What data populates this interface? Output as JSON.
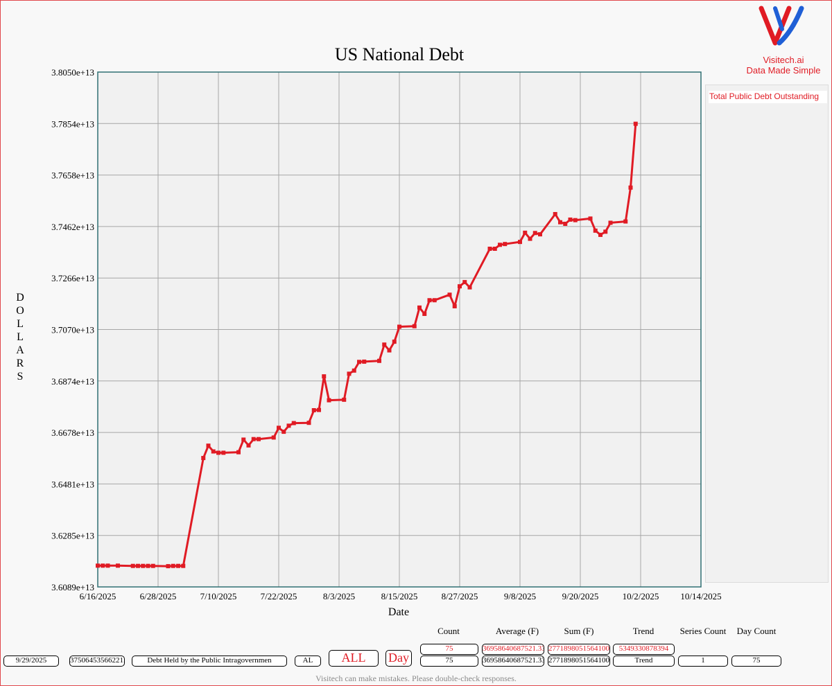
{
  "brand": {
    "name": "Visitech.ai",
    "tagline": "Data Made Simple",
    "colors": {
      "red": "#e01b24",
      "blue": "#1f5fd6"
    }
  },
  "chart_data": {
    "type": "line",
    "title": "US National Debt",
    "xlabel": "Date",
    "ylabel": "DOLLARS",
    "grid": true,
    "legend": "right",
    "ylim": [
      36089000000000,
      38050000000000
    ],
    "xlim": [
      "2025-06-16",
      "2025-10-14"
    ],
    "yticks": [
      "3.6089e+13",
      "3.6285e+13",
      "3.6481e+13",
      "3.6678e+13",
      "3.6874e+13",
      "3.7070e+13",
      "3.7266e+13",
      "3.7462e+13",
      "3.7658e+13",
      "3.7854e+13",
      "3.8050e+13"
    ],
    "xticks": [
      "6/16/2025",
      "6/28/2025",
      "7/10/2025",
      "7/22/2025",
      "8/3/2025",
      "8/15/2025",
      "8/27/2025",
      "9/8/2025",
      "9/20/2025",
      "10/2/2025",
      "10/14/2025"
    ],
    "series": [
      {
        "name": "Total Public Debt Outstanding",
        "color": "#e01b24",
        "points": [
          [
            "2025-06-16",
            36170000000000
          ],
          [
            "2025-06-17",
            36170000000000
          ],
          [
            "2025-06-18",
            36170000000000
          ],
          [
            "2025-06-20",
            36170000000000
          ],
          [
            "2025-06-23",
            36169000000000
          ],
          [
            "2025-06-24",
            36169000000000
          ],
          [
            "2025-06-25",
            36169000000000
          ],
          [
            "2025-06-26",
            36169000000000
          ],
          [
            "2025-06-27",
            36169000000000
          ],
          [
            "2025-06-30",
            36168000000000
          ],
          [
            "2025-07-01",
            36169000000000
          ],
          [
            "2025-07-02",
            36169000000000
          ],
          [
            "2025-07-03",
            36169000000000
          ],
          [
            "2025-07-07",
            36580000000000
          ],
          [
            "2025-07-08",
            36627000000000
          ],
          [
            "2025-07-09",
            36605000000000
          ],
          [
            "2025-07-10",
            36600000000000
          ],
          [
            "2025-07-11",
            36600000000000
          ],
          [
            "2025-07-14",
            36602000000000
          ],
          [
            "2025-07-15",
            36650000000000
          ],
          [
            "2025-07-16",
            36628000000000
          ],
          [
            "2025-07-17",
            36652000000000
          ],
          [
            "2025-07-18",
            36652000000000
          ],
          [
            "2025-07-21",
            36658000000000
          ],
          [
            "2025-07-22",
            36695000000000
          ],
          [
            "2025-07-23",
            36680000000000
          ],
          [
            "2025-07-24",
            36703000000000
          ],
          [
            "2025-07-25",
            36713000000000
          ],
          [
            "2025-07-28",
            36714000000000
          ],
          [
            "2025-07-29",
            36762000000000
          ],
          [
            "2025-07-30",
            36763000000000
          ],
          [
            "2025-07-31",
            36891000000000
          ],
          [
            "2025-08-01",
            36800000000000
          ],
          [
            "2025-08-04",
            36802000000000
          ],
          [
            "2025-08-05",
            36901000000000
          ],
          [
            "2025-08-06",
            36913000000000
          ],
          [
            "2025-08-07",
            36946000000000
          ],
          [
            "2025-08-08",
            36947000000000
          ],
          [
            "2025-08-11",
            36950000000000
          ],
          [
            "2025-08-12",
            37012000000000
          ],
          [
            "2025-08-13",
            36990000000000
          ],
          [
            "2025-08-14",
            37023000000000
          ],
          [
            "2025-08-15",
            37080000000000
          ],
          [
            "2025-08-18",
            37082000000000
          ],
          [
            "2025-08-19",
            37153000000000
          ],
          [
            "2025-08-20",
            37129000000000
          ],
          [
            "2025-08-21",
            37181000000000
          ],
          [
            "2025-08-22",
            37181000000000
          ],
          [
            "2025-08-25",
            37202000000000
          ],
          [
            "2025-08-26",
            37158000000000
          ],
          [
            "2025-08-27",
            37234000000000
          ],
          [
            "2025-08-28",
            37250000000000
          ],
          [
            "2025-08-29",
            37230000000000
          ],
          [
            "2025-09-02",
            37377000000000
          ],
          [
            "2025-09-03",
            37377000000000
          ],
          [
            "2025-09-04",
            37392000000000
          ],
          [
            "2025-09-05",
            37395000000000
          ],
          [
            "2025-09-08",
            37403000000000
          ],
          [
            "2025-09-09",
            37438000000000
          ],
          [
            "2025-09-10",
            37415000000000
          ],
          [
            "2025-09-11",
            37437000000000
          ],
          [
            "2025-09-12",
            37432000000000
          ],
          [
            "2025-09-15",
            37509000000000
          ],
          [
            "2025-09-16",
            37478000000000
          ],
          [
            "2025-09-17",
            37472000000000
          ],
          [
            "2025-09-18",
            37488000000000
          ],
          [
            "2025-09-19",
            37486000000000
          ],
          [
            "2025-09-22",
            37492000000000
          ],
          [
            "2025-09-23",
            37446000000000
          ],
          [
            "2025-09-24",
            37430000000000
          ],
          [
            "2025-09-25",
            37442000000000
          ],
          [
            "2025-09-26",
            37476000000000
          ],
          [
            "2025-09-29",
            37481000000000
          ],
          [
            "2025-09-30",
            37610000000000
          ],
          [
            "2025-10-01",
            37853000000000
          ]
        ]
      }
    ]
  },
  "stats": {
    "headers": {
      "count": "Count",
      "average": "Average (F)",
      "sum": "Sum (F)",
      "trend": "Trend",
      "series_count": "Series Count",
      "day_count": "Day Count"
    },
    "row1": {
      "count": "75",
      "average": "36958640687521.3333",
      "sum": "2771898051564100",
      "trend": "5349330878394"
    },
    "row2": {
      "count": "75",
      "average": "36958640687521.3333",
      "sum": "2771898051564100",
      "trend": "Trend",
      "series_count": "1",
      "day_count": "75"
    }
  },
  "controls": {
    "date_value": "9/29/2025",
    "amount_value": "37506453566221.2",
    "field_value": "Debt Held by the Public Intragovernmen",
    "al_value": "AL",
    "all_button": "ALL",
    "day_button": "Day"
  },
  "disclaimer": "Visitech can make mistakes. Please double-check responses."
}
